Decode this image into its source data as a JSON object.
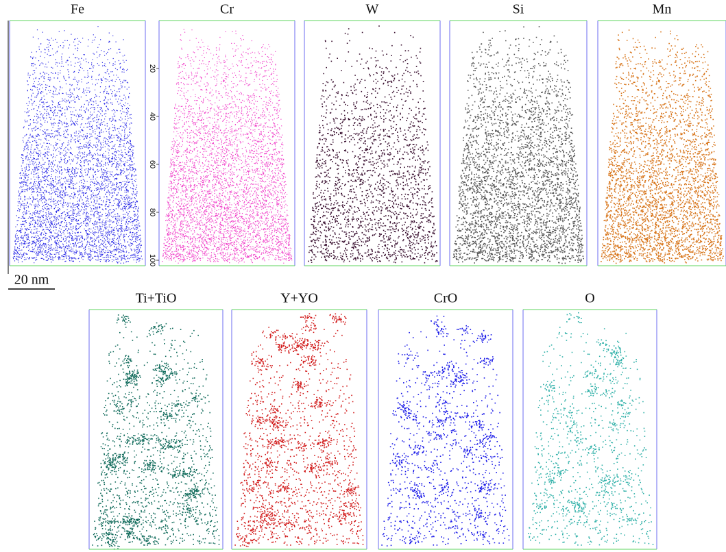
{
  "top_row": [
    {
      "label": "Fe",
      "color": "#2a2ae6"
    },
    {
      "label": "Cr",
      "color": "#f03cc8"
    },
    {
      "label": "W",
      "color": "#3a1030"
    },
    {
      "label": "Si",
      "color": "#555555"
    },
    {
      "label": "Mn",
      "color": "#d8761c"
    }
  ],
  "bottom_row": [
    {
      "label": "Ti+TiO",
      "color": "#0f6a5a"
    },
    {
      "label": "Y+YO",
      "color": "#d21c1c"
    },
    {
      "label": "CrO",
      "color": "#1a1ae8"
    },
    {
      "label": "O",
      "color": "#2fb0a8"
    }
  ],
  "axis_ticks": [
    20,
    40,
    60,
    80,
    100
  ],
  "scale_bar": "20 nm"
}
